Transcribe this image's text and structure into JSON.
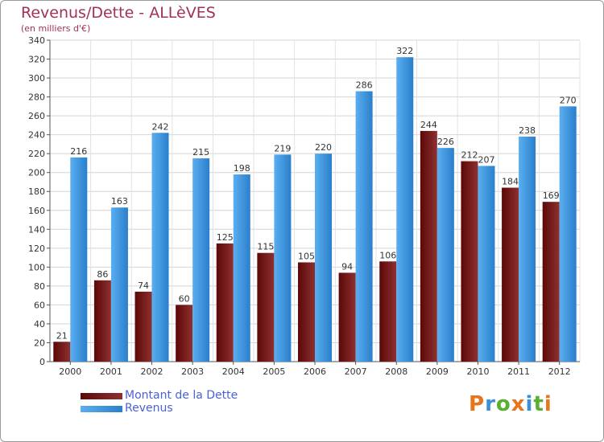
{
  "title": "Revenus/Dette - ALLèVES",
  "subtitle": "(en milliers d'€)",
  "logo": {
    "text": "Proxiti",
    "letters": [
      "P",
      "r",
      "o",
      "x",
      "i",
      "t",
      "i"
    ],
    "colors": [
      "#e8741c",
      "#3a8fd8",
      "#58b030",
      "#e8741c",
      "#3a8fd8",
      "#58b030",
      "#e8741c"
    ]
  },
  "colors": {
    "debt_dark": "#5c0808",
    "debt_light": "#8e3030",
    "revenue_dark": "#2a7fcb",
    "revenue_light": "#5aaef0",
    "title": "#a3305a",
    "legend_text": "#4a62d8"
  },
  "chart_data": {
    "type": "bar",
    "title": "Revenus/Dette - ALLèVES",
    "ylabel": "(en milliers d'€)",
    "xlabel": "",
    "categories": [
      "2000",
      "2001",
      "2002",
      "2003",
      "2004",
      "2005",
      "2006",
      "2007",
      "2008",
      "2009",
      "2010",
      "2011",
      "2012"
    ],
    "ylim": [
      0,
      340
    ],
    "yticks": [
      "0",
      "20",
      "40",
      "60",
      "80",
      "100",
      "120",
      "140",
      "160",
      "180",
      "200",
      "220",
      "240",
      "260",
      "280",
      "300",
      "320",
      "340"
    ],
    "grid": true,
    "legend_position": "bottom-left",
    "series": [
      {
        "name": "Montant de la Dette",
        "values": [
          21,
          86,
          74,
          60,
          125,
          115,
          105,
          94,
          106,
          244,
          212,
          184,
          169
        ],
        "labels": [
          "21",
          "86",
          "74",
          "60",
          "125",
          "115",
          "105",
          "94",
          "106",
          "244",
          "212",
          "184",
          "169"
        ]
      },
      {
        "name": "Revenus",
        "values": [
          216,
          163,
          242,
          215,
          198,
          219,
          220,
          286,
          322,
          226,
          207,
          238,
          270
        ],
        "labels": [
          "216",
          "163",
          "242",
          "215",
          "198",
          "219",
          "220",
          "286",
          "322",
          "226",
          "207",
          "238",
          "270"
        ]
      }
    ]
  }
}
